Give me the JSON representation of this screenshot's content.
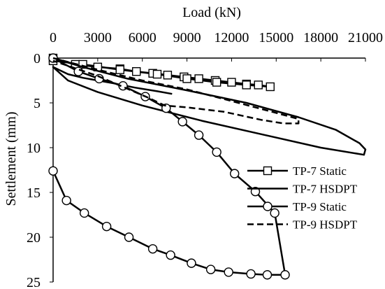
{
  "chart_data": {
    "type": "line",
    "xlabel": "Load (kN)",
    "ylabel": "Settlement (mm)",
    "xlim": [
      0,
      21000
    ],
    "ylim": [
      0,
      25
    ],
    "x_axis_position": "top",
    "y_axis_inverted": true,
    "xticks": [
      0,
      3000,
      6000,
      9000,
      12000,
      15000,
      18000,
      21000
    ],
    "xtick_labels": [
      "0",
      "3000",
      "6000",
      "9000",
      "12000",
      "15000",
      "18000",
      "21000"
    ],
    "yticks": [
      0,
      5,
      10,
      15,
      20,
      25
    ],
    "ytick_labels": [
      "0",
      "5",
      "10",
      "15",
      "20",
      "25"
    ],
    "grid": false,
    "legend_position": "right",
    "series": [
      {
        "name": "TP-7 Static",
        "marker": "square",
        "line": "solid",
        "points": [
          [
            0,
            0
          ],
          [
            1500,
            0.7
          ],
          [
            3000,
            1.0
          ],
          [
            4500,
            1.2
          ],
          [
            5600,
            1.5
          ],
          [
            6700,
            1.7
          ],
          [
            7700,
            1.9
          ],
          [
            8800,
            2.1
          ],
          [
            9800,
            2.3
          ],
          [
            10900,
            2.5
          ],
          [
            12000,
            2.7
          ],
          [
            13000,
            2.9
          ],
          [
            13800,
            3.0
          ],
          [
            14600,
            3.2
          ],
          [
            13000,
            3.0
          ],
          [
            11000,
            2.7
          ],
          [
            9000,
            2.3
          ],
          [
            7000,
            1.8
          ],
          [
            4500,
            1.3
          ],
          [
            2000,
            0.7
          ],
          [
            0,
            0.3
          ]
        ]
      },
      {
        "name": "TP-7 HSDPT",
        "marker": "none",
        "line": "solid",
        "points": [
          [
            0,
            0
          ],
          [
            2000,
            1.0
          ],
          [
            5000,
            2.3
          ],
          [
            9000,
            3.6
          ],
          [
            13000,
            5.0
          ],
          [
            16500,
            6.6
          ],
          [
            19000,
            8.0
          ],
          [
            20600,
            9.5
          ],
          [
            21000,
            10.2
          ],
          [
            20900,
            10.8
          ],
          [
            18000,
            10.0
          ],
          [
            14000,
            8.5
          ],
          [
            10000,
            7.0
          ],
          [
            6000,
            5.3
          ],
          [
            3000,
            3.8
          ],
          [
            1000,
            2.5
          ],
          [
            0,
            1.0
          ],
          [
            1000,
            1.8
          ],
          [
            2000,
            2.2
          ],
          [
            4000,
            2.8
          ],
          [
            5500,
            3.3
          ],
          [
            7000,
            3.7
          ],
          [
            8000,
            4.0
          ]
        ]
      },
      {
        "name": "TP-9 Static",
        "marker": "circle",
        "line": "solid",
        "points": [
          [
            0,
            0
          ],
          [
            1700,
            1.5
          ],
          [
            3100,
            2.3
          ],
          [
            4700,
            3.1
          ],
          [
            6200,
            4.3
          ],
          [
            7600,
            5.6
          ],
          [
            8700,
            7.1
          ],
          [
            9800,
            8.6
          ],
          [
            11000,
            10.5
          ],
          [
            12200,
            12.9
          ],
          [
            13600,
            14.9
          ],
          [
            14900,
            17.3
          ],
          [
            15600,
            24.2
          ],
          [
            14400,
            24.2
          ],
          [
            13300,
            24.1
          ],
          [
            11800,
            23.9
          ],
          [
            10600,
            23.6
          ],
          [
            9300,
            22.9
          ],
          [
            7900,
            22.0
          ],
          [
            6700,
            21.3
          ],
          [
            5100,
            20.0
          ],
          [
            3600,
            18.8
          ],
          [
            2100,
            17.3
          ],
          [
            900,
            15.9
          ],
          [
            0,
            12.6
          ]
        ]
      },
      {
        "name": "TP-9 HSDPT",
        "marker": "none",
        "line": "dashed",
        "points": [
          [
            0,
            0
          ],
          [
            3000,
            1.3
          ],
          [
            6000,
            2.5
          ],
          [
            9000,
            3.5
          ],
          [
            12000,
            4.8
          ],
          [
            14500,
            5.9
          ],
          [
            16500,
            6.8
          ],
          [
            16500,
            7.3
          ],
          [
            15500,
            7.3
          ],
          [
            14000,
            6.9
          ],
          [
            11500,
            6.0
          ],
          [
            9000,
            5.5
          ],
          [
            7500,
            5.3
          ],
          [
            6500,
            4.5
          ],
          [
            3000,
            2.0
          ],
          [
            0,
            0.3
          ]
        ]
      }
    ]
  }
}
